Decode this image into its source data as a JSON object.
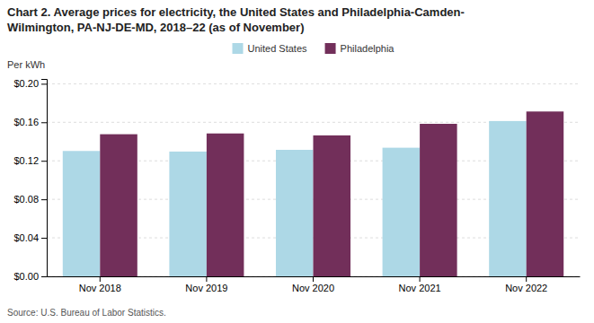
{
  "chart_data": {
    "type": "bar",
    "title": "Chart 2. Average prices for electricity, the United States and Philadelphia-Camden-",
    "subtitle": "Wilmington, PA-NJ-DE-MD, 2018–22 (as of November)",
    "ylabel": "Per kWh",
    "annotations": [
      "Source: U.S. Bureau of Labor Statistics."
    ],
    "categories": [
      "Nov 2018",
      "Nov 2019",
      "Nov 2020",
      "Nov 2021",
      "Nov 2022"
    ],
    "series": [
      {
        "name": "United States",
        "color": "#add8e6",
        "values": [
          0.1302,
          0.1296,
          0.1314,
          0.1336,
          0.1613
        ]
      },
      {
        "name": "Philadelphia",
        "color": "#722f5a",
        "values": [
          0.1476,
          0.1484,
          0.1464,
          0.1584,
          0.1712
        ]
      }
    ],
    "ylim": [
      0.0,
      0.205
    ],
    "yticks": [
      {
        "value": 0.0,
        "label": "$0.00"
      },
      {
        "value": 0.04,
        "label": "$0.04"
      },
      {
        "value": 0.08,
        "label": "$0.08"
      },
      {
        "value": 0.12,
        "label": "$0.12"
      },
      {
        "value": 0.16,
        "label": "$0.16"
      },
      {
        "value": 0.2,
        "label": "$0.20"
      }
    ],
    "grid": true,
    "legend": "top"
  }
}
